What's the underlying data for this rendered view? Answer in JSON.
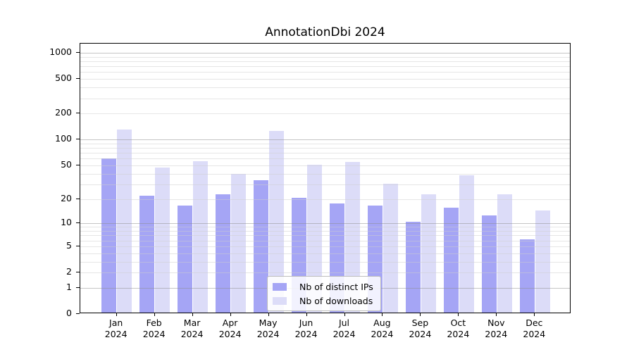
{
  "chart_data": {
    "type": "bar",
    "title": "AnnotationDbi 2024",
    "categories": [
      "Jan",
      "Feb",
      "Mar",
      "Apr",
      "May",
      "Jun",
      "Jul",
      "Aug",
      "Sep",
      "Oct",
      "Nov",
      "Dec"
    ],
    "year_label": "2024",
    "series": [
      {
        "name": "Nb of distinct IPs",
        "color": "#a5a5f5",
        "values": [
          58,
          21,
          16,
          22,
          32,
          20,
          17,
          16,
          10,
          15,
          12,
          6
        ]
      },
      {
        "name": "Nb of downloads",
        "color": "#dcdcf8",
        "values": [
          126,
          45,
          54,
          38,
          120,
          49,
          53,
          29,
          22,
          37,
          22,
          14
        ]
      }
    ],
    "y_axis": {
      "scale": "log10(1+x)",
      "tick_values": [
        0,
        1,
        2,
        5,
        10,
        20,
        50,
        100,
        200,
        500,
        1000
      ],
      "tick_labels": [
        "0",
        "1",
        "2",
        "5",
        "10",
        "20",
        "50",
        "100",
        "200",
        "500",
        "1000"
      ],
      "ylim": [
        0,
        1270
      ],
      "major_grid_values": [
        1,
        10,
        100,
        1000
      ],
      "minor_grid_values": [
        2,
        3,
        4,
        5,
        6,
        7,
        8,
        9,
        20,
        30,
        40,
        50,
        60,
        70,
        80,
        90,
        200,
        300,
        400,
        500,
        600,
        700,
        800,
        900
      ]
    },
    "grid": "horizontal",
    "legend_position": "inside-bottom-center"
  }
}
